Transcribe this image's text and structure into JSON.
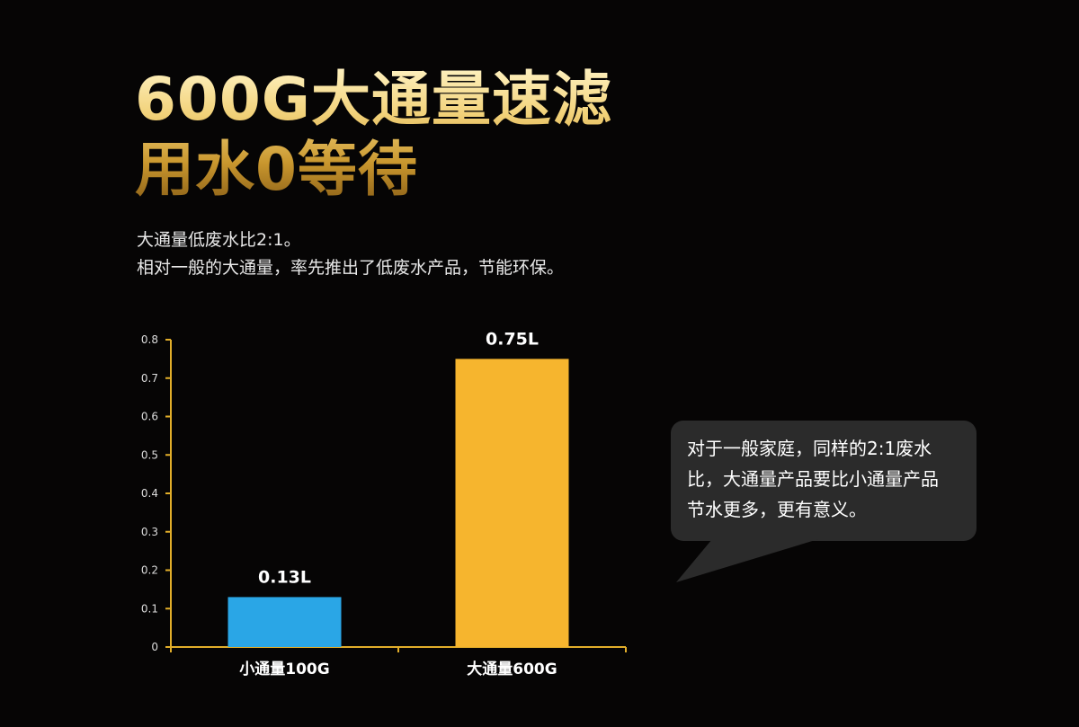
{
  "headline": {
    "line1": "600G大通量速滤",
    "line2": "用水0等待"
  },
  "intro": {
    "line1": "大通量低废水比2:1。",
    "line2": "相对一般的大通量，率先推出了低废水产品，节能环保。"
  },
  "callout": {
    "line1": "对于一般家庭，同样的2:1废水",
    "line2": "比，大通量产品要比小通量产品",
    "line3": "节水更多，更有意义。"
  },
  "chart_data": {
    "type": "bar",
    "categories": [
      "小通量100G",
      "大通量600G"
    ],
    "values": [
      0.13,
      0.75
    ],
    "value_labels": [
      "0.13L",
      "0.75L"
    ],
    "bar_colors": [
      "#2aa6e6",
      "#f6b52e"
    ],
    "axis_color": "#e2ae2a",
    "ylim": [
      0,
      0.8
    ],
    "yticks": [
      "0",
      "0.1",
      "0.2",
      "0.3",
      "0.4",
      "0.5",
      "0.6",
      "0.7",
      "0.8"
    ],
    "title": "",
    "xlabel": "",
    "ylabel": "",
    "grid": false,
    "legend": "none"
  }
}
